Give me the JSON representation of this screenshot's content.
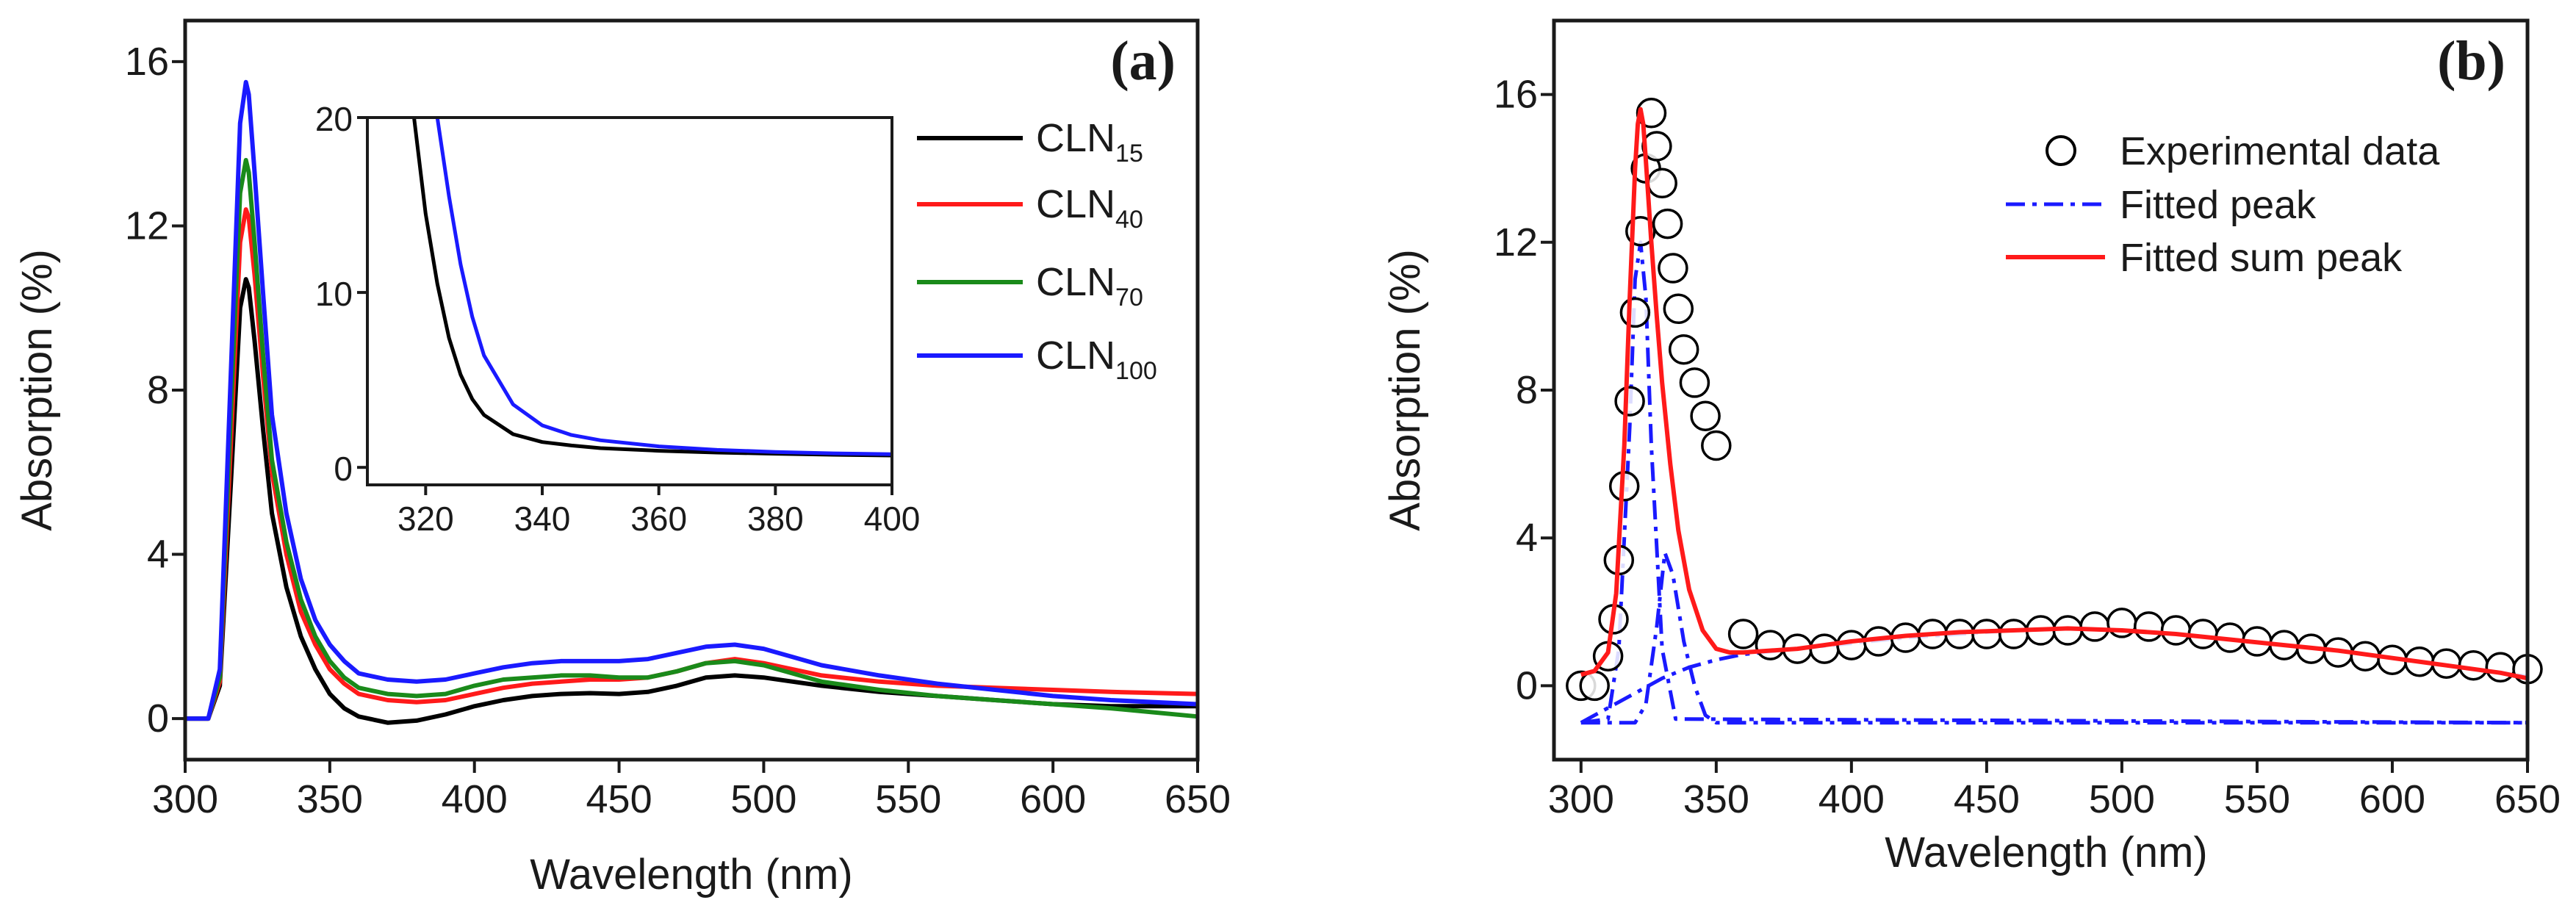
{
  "colors": {
    "CLN15": "#000000",
    "CLN40": "#ff1a1a",
    "CLN70": "#1a8a1a",
    "CLN100": "#1a1aff",
    "fit_peak": "#1a1aff",
    "fit_sum": "#ff1a1a",
    "exp": "#000000"
  },
  "chart_data": [
    {
      "type": "line",
      "panel_label": "(a)",
      "xlabel": "Wavelength (nm)",
      "ylabel": "Absorption (%)",
      "xlim": [
        300,
        650
      ],
      "ylim": [
        -1,
        17
      ],
      "xticks": [
        "300",
        "350",
        "400",
        "450",
        "500",
        "550",
        "600",
        "650"
      ],
      "yticks": [
        "0",
        "4",
        "8",
        "12",
        "16"
      ],
      "legend": {
        "position": "top-right",
        "entries": [
          {
            "base": "CLN",
            "sub": "15",
            "color_key": "CLN15"
          },
          {
            "base": "CLN",
            "sub": "40",
            "color_key": "CLN40"
          },
          {
            "base": "CLN",
            "sub": "70",
            "color_key": "CLN70"
          },
          {
            "base": "CLN",
            "sub": "100",
            "color_key": "CLN100"
          }
        ]
      },
      "x": [
        300,
        308,
        312,
        316,
        319,
        321,
        322,
        324,
        327,
        330,
        335,
        340,
        345,
        350,
        355,
        360,
        370,
        380,
        390,
        400,
        410,
        420,
        430,
        440,
        450,
        460,
        470,
        480,
        490,
        500,
        510,
        520,
        540,
        560,
        580,
        600,
        620,
        650
      ],
      "series": [
        {
          "name": "CLN15",
          "color_key": "CLN15",
          "values": [
            0,
            0,
            0.8,
            6.0,
            10.0,
            10.7,
            10.5,
            9.2,
            7.0,
            5.0,
            3.2,
            2.0,
            1.2,
            0.6,
            0.25,
            0.05,
            -0.1,
            -0.05,
            0.1,
            0.3,
            0.45,
            0.55,
            0.6,
            0.62,
            0.6,
            0.65,
            0.8,
            1.0,
            1.05,
            1.0,
            0.9,
            0.8,
            0.65,
            0.55,
            0.45,
            0.35,
            0.3,
            0.3
          ]
        },
        {
          "name": "CLN40",
          "color_key": "CLN40",
          "values": [
            0,
            0,
            0.9,
            7.0,
            11.6,
            12.4,
            12.2,
            10.8,
            8.3,
            6.0,
            4.0,
            2.6,
            1.8,
            1.2,
            0.85,
            0.6,
            0.45,
            0.4,
            0.45,
            0.6,
            0.75,
            0.85,
            0.9,
            0.95,
            0.95,
            1.0,
            1.15,
            1.35,
            1.45,
            1.35,
            1.2,
            1.05,
            0.9,
            0.8,
            0.75,
            0.7,
            0.65,
            0.6
          ]
        },
        {
          "name": "CLN70",
          "color_key": "CLN70",
          "values": [
            0,
            0,
            1.0,
            7.8,
            12.8,
            13.6,
            13.3,
            11.6,
            8.8,
            6.3,
            4.3,
            2.9,
            2.0,
            1.4,
            1.0,
            0.75,
            0.6,
            0.55,
            0.6,
            0.8,
            0.95,
            1.0,
            1.05,
            1.05,
            1.0,
            1.0,
            1.15,
            1.35,
            1.4,
            1.3,
            1.1,
            0.9,
            0.7,
            0.55,
            0.45,
            0.35,
            0.25,
            0.05
          ]
        },
        {
          "name": "CLN100",
          "color_key": "CLN100",
          "values": [
            0,
            0,
            1.2,
            8.8,
            14.5,
            15.5,
            15.2,
            13.3,
            10.3,
            7.4,
            5.0,
            3.4,
            2.4,
            1.8,
            1.4,
            1.1,
            0.95,
            0.9,
            0.95,
            1.1,
            1.25,
            1.35,
            1.4,
            1.4,
            1.4,
            1.45,
            1.6,
            1.75,
            1.8,
            1.7,
            1.5,
            1.3,
            1.05,
            0.85,
            0.7,
            0.55,
            0.45,
            0.35
          ]
        }
      ],
      "inset": {
        "type": "line",
        "xlim": [
          310,
          400
        ],
        "ylim": [
          -1,
          20
        ],
        "xticks": [
          "320",
          "340",
          "360",
          "380",
          "400"
        ],
        "yticks": [
          "0",
          "10",
          "20"
        ],
        "x": [
          318,
          320,
          322,
          324,
          326,
          328,
          330,
          335,
          340,
          345,
          350,
          360,
          370,
          380,
          390,
          400
        ],
        "series": [
          {
            "name": "CLN15",
            "color_key": "CLN15",
            "values": [
              20,
              14.5,
              10.5,
              7.4,
              5.3,
              3.9,
              3.0,
              1.9,
              1.45,
              1.25,
              1.1,
              0.95,
              0.85,
              0.78,
              0.72,
              0.68
            ]
          },
          {
            "name": "CLN100",
            "color_key": "CLN100",
            "values": [
              null,
              null,
              20,
              15.5,
              11.6,
              8.6,
              6.4,
              3.6,
              2.4,
              1.85,
              1.55,
              1.2,
              1.0,
              0.88,
              0.8,
              0.75
            ]
          }
        ]
      }
    },
    {
      "type": "line",
      "panel_label": "(b)",
      "xlabel": "Wavelength (nm)",
      "ylabel": "Absorption (%)",
      "xlim": [
        290,
        650
      ],
      "ylim": [
        -2,
        18
      ],
      "xticks": [
        "300",
        "350",
        "400",
        "450",
        "500",
        "550",
        "600",
        "650"
      ],
      "yticks": [
        "0",
        "4",
        "8",
        "12",
        "16"
      ],
      "legend": {
        "position": "top-right",
        "entries": [
          {
            "label": "Experimental data",
            "style": "circle",
            "color_key": "exp"
          },
          {
            "label": "Fitted peak",
            "style": "dashdot",
            "color_key": "fit_peak"
          },
          {
            "label": "Fitted sum peak",
            "style": "solid",
            "color_key": "fit_sum"
          }
        ]
      },
      "experimental": {
        "x": [
          300,
          305,
          310,
          312,
          314,
          316,
          318,
          320,
          322,
          324,
          326,
          328,
          330,
          332,
          334,
          336,
          338,
          342,
          346,
          350,
          360,
          370,
          380,
          390,
          400,
          410,
          420,
          430,
          440,
          450,
          460,
          470,
          480,
          490,
          500,
          510,
          520,
          530,
          540,
          550,
          560,
          570,
          580,
          590,
          600,
          610,
          620,
          630,
          640,
          650
        ],
        "y": [
          0,
          0,
          0.8,
          1.8,
          3.4,
          5.4,
          7.7,
          10.1,
          12.3,
          14.0,
          15.5,
          14.6,
          13.6,
          12.5,
          11.3,
          10.2,
          9.1,
          8.2,
          7.3,
          6.5,
          1.4,
          1.1,
          1.0,
          1.0,
          1.1,
          1.2,
          1.3,
          1.4,
          1.4,
          1.4,
          1.4,
          1.5,
          1.5,
          1.6,
          1.7,
          1.6,
          1.5,
          1.4,
          1.3,
          1.2,
          1.1,
          1.0,
          0.9,
          0.8,
          0.7,
          0.65,
          0.6,
          0.55,
          0.5,
          0.45
        ]
      },
      "fit_sum": {
        "x": [
          300,
          305,
          310,
          313,
          316,
          318,
          320,
          321,
          322,
          323,
          324,
          326,
          328,
          330,
          333,
          336,
          340,
          345,
          350,
          355,
          360,
          380,
          400,
          420,
          440,
          460,
          480,
          500,
          520,
          540,
          560,
          580,
          600,
          620,
          640,
          650
        ],
        "y": [
          0.3,
          0.4,
          0.9,
          2.5,
          6.5,
          10.5,
          14.0,
          15.2,
          15.6,
          15.2,
          14.2,
          12.0,
          10.0,
          8.2,
          6.0,
          4.2,
          2.6,
          1.5,
          1.0,
          0.9,
          0.9,
          1.0,
          1.2,
          1.35,
          1.45,
          1.5,
          1.55,
          1.5,
          1.4,
          1.25,
          1.1,
          0.95,
          0.75,
          0.55,
          0.35,
          0.2
        ]
      },
      "fit_peaks": [
        {
          "name": "peak1",
          "x": [
            300,
            310,
            314,
            318,
            320,
            322,
            324,
            326,
            330,
            335,
            650
          ],
          "y": [
            -1.0,
            -0.9,
            1.0,
            7.0,
            11.0,
            12.0,
            10.5,
            6.5,
            1.0,
            -0.9,
            -1.0
          ]
        },
        {
          "name": "peak2",
          "x": [
            300,
            320,
            324,
            328,
            331,
            334,
            338,
            342,
            346,
            350,
            650
          ],
          "y": [
            -1.0,
            -1.0,
            -0.5,
            1.6,
            3.6,
            3.0,
            1.2,
            0.0,
            -0.8,
            -1.0,
            -1.0
          ]
        },
        {
          "name": "peak3",
          "x": [
            300,
            310,
            320,
            330,
            340,
            350,
            360,
            380,
            400,
            420,
            440,
            460,
            480,
            500,
            520,
            540,
            560,
            580,
            600,
            620,
            650
          ],
          "y": [
            -1.0,
            -0.6,
            -0.2,
            0.2,
            0.5,
            0.7,
            0.85,
            1.0,
            1.15,
            1.3,
            1.4,
            1.5,
            1.55,
            1.5,
            1.4,
            1.25,
            1.1,
            0.95,
            0.75,
            0.55,
            0.25
          ]
        }
      ]
    }
  ]
}
